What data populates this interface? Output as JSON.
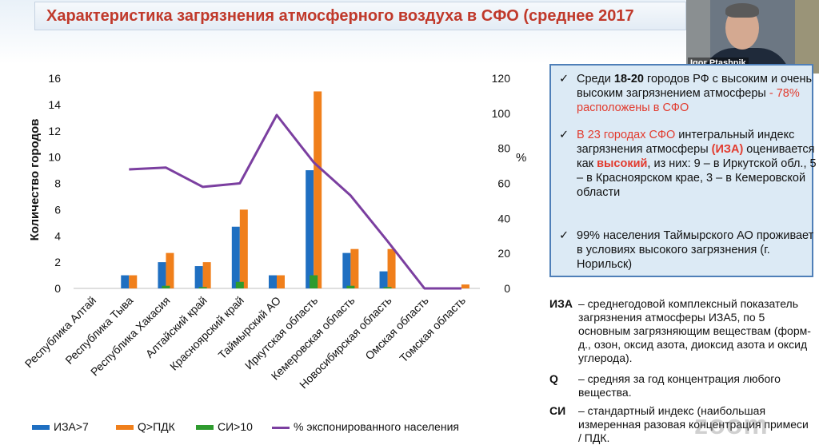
{
  "slide": {
    "title": "Характеристика загрязнения атмосферного воздуха в СФО (среднее 2017"
  },
  "video": {
    "participant_name": "Igor Ptashnik"
  },
  "chart_data": {
    "type": "bar",
    "ylabel": "Количество городов",
    "y2label": "%",
    "ylim": [
      0,
      16
    ],
    "y2lim": [
      0,
      120
    ],
    "yticks": [
      0,
      2,
      4,
      6,
      8,
      10,
      12,
      14,
      16
    ],
    "y2ticks": [
      0,
      20,
      40,
      60,
      80,
      100,
      120
    ],
    "categories": [
      "Республика Алтай",
      "Республика Тыва",
      "Республика Хакасия",
      "Алтайский край",
      "Красноярский край",
      "Таймырский АО",
      "Иркутская область",
      "Кемеровская область",
      "Новосибирская область",
      "Омская область",
      "Томская область"
    ],
    "series": [
      {
        "name": "ИЗА>7",
        "color": "#1f6fc1",
        "values": [
          0,
          1,
          2,
          1.7,
          4.7,
          1,
          9,
          2.7,
          1.3,
          0,
          0
        ]
      },
      {
        "name": "Q>ПДК",
        "color": "#f07f1b",
        "values": [
          0,
          1,
          2.7,
          2,
          6,
          1,
          15,
          3,
          3,
          0,
          0.3
        ]
      },
      {
        "name": "СИ>10",
        "color": "#2e9b2e",
        "values": [
          0,
          0,
          0.2,
          0.1,
          0.5,
          0,
          1,
          0.2,
          0.1,
          0,
          0
        ]
      },
      {
        "name": "% экспонированного населения",
        "color": "#7b3fa0",
        "type": "line",
        "axis": "y2",
        "values": [
          null,
          68,
          69,
          58,
          60,
          99,
          72,
          53,
          27,
          0,
          0
        ]
      }
    ],
    "grid": false,
    "legend_position": "bottom"
  },
  "info_box": {
    "bullets": [
      {
        "parts": [
          {
            "t": "Среди ",
            "c": ""
          },
          {
            "t": "18-20",
            "c": "bold"
          },
          {
            "t": " городов РФ с высоким и очень высоким загрязнением атмосферы ",
            "c": ""
          },
          {
            "t": "- 78% расположены в СФО",
            "c": "red"
          }
        ]
      },
      {
        "parts": [
          {
            "t": "В 23 городах СФО",
            "c": "red"
          },
          {
            "t": " интегральный индекс загрязнения атмосферы ",
            "c": ""
          },
          {
            "t": "(ИЗА)",
            "c": "red bold"
          },
          {
            "t": " оценивается как ",
            "c": ""
          },
          {
            "t": "высокий",
            "c": "red bold"
          },
          {
            "t": ", из них: 9 – в Иркутской обл., 5 – в Красноярском крае, 3 – в Кемеровской области",
            "c": ""
          }
        ]
      },
      {
        "parts": [
          {
            "t": "99% населения Таймырского АО проживает в условиях высокого загрязнения (г. Норильск)",
            "c": ""
          }
        ]
      }
    ]
  },
  "definitions": [
    {
      "term": "ИЗА",
      "text": "– среднегодовой комплексный показатель загрязнения атмосферы ИЗА5, по 5 основным загрязняющим веществам (форм-д., озон, оксид азота, диоксид азота и оксид углерода)."
    },
    {
      "term": "Q",
      "text": "– средняя за год концентрация любого вещества."
    },
    {
      "term": "СИ",
      "text": "– стандартный индекс (наибольшая измеренная разовая концентрация примеси / ПДК."
    }
  ],
  "watermark": {
    "text": "zoom"
  }
}
